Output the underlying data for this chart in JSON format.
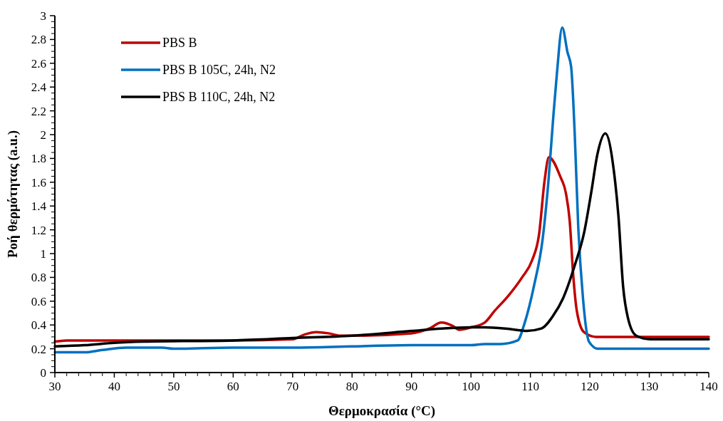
{
  "chart_data": {
    "type": "line",
    "xlabel": "Θερμοκρασία (°C)",
    "ylabel": "Ροή θερμότητας (a.u.)",
    "xlim": [
      30,
      140
    ],
    "ylim": [
      0,
      3
    ],
    "xticks": [
      30,
      40,
      50,
      60,
      70,
      80,
      90,
      100,
      110,
      120,
      130,
      140
    ],
    "yticks": [
      0,
      0.2,
      0.4,
      0.6,
      0.8,
      1,
      1.2,
      1.4,
      1.6,
      1.8,
      2,
      2.2,
      2.4,
      2.6,
      2.8,
      3
    ],
    "grid": false,
    "legend": "top left",
    "marker": "none",
    "line_style": "solid",
    "series": [
      {
        "name": "PBS B",
        "color": "#c00000",
        "x": [
          30,
          32,
          40,
          60,
          70,
          72,
          74,
          76,
          78,
          80,
          90,
          93,
          95,
          97,
          98,
          100,
          102.3,
          104,
          106.2,
          108.6,
          110.25,
          111.45,
          112.4,
          113.1,
          115,
          116,
          116.6,
          117.2,
          117.8,
          119,
          121,
          140
        ],
        "values": [
          0.26,
          0.27,
          0.27,
          0.27,
          0.28,
          0.32,
          0.34,
          0.33,
          0.31,
          0.31,
          0.33,
          0.37,
          0.42,
          0.39,
          0.36,
          0.38,
          0.42,
          0.52,
          0.64,
          0.8,
          0.94,
          1.16,
          1.62,
          1.81,
          1.65,
          1.5,
          1.28,
          0.82,
          0.52,
          0.34,
          0.3,
          0.3
        ]
      },
      {
        "name": "PBS B 105C, 24h, N2",
        "color": "#0070c0",
        "x": [
          30,
          35,
          38,
          42,
          48,
          50,
          60,
          70,
          80,
          90,
          100,
          102.3,
          105,
          107.85,
          109.05,
          110.65,
          112.05,
          113.05,
          113.85,
          114.45,
          115.35,
          116.25,
          116.85,
          117.45,
          118.05,
          118.85,
          119.85,
          121.4,
          140
        ],
        "values": [
          0.17,
          0.17,
          0.19,
          0.21,
          0.21,
          0.2,
          0.21,
          0.21,
          0.22,
          0.23,
          0.23,
          0.24,
          0.24,
          0.27,
          0.42,
          0.74,
          1.12,
          1.62,
          2.15,
          2.51,
          2.9,
          2.69,
          2.57,
          2.01,
          1.22,
          0.62,
          0.26,
          0.2,
          0.2
        ]
      },
      {
        "name": "PBS B 110C, 24h, N2",
        "color": "#000000",
        "x": [
          30,
          35,
          40,
          45,
          60,
          70,
          80,
          90,
          95,
          100,
          102.3,
          105.85,
          109.45,
          111.85,
          113.85,
          115.45,
          117.45,
          119.05,
          120.25,
          121.25,
          122.6,
          124,
          124.8,
          125.6,
          126.4,
          127.8,
          130.2,
          140
        ],
        "values": [
          0.22,
          0.23,
          0.25,
          0.26,
          0.27,
          0.29,
          0.31,
          0.35,
          0.37,
          0.38,
          0.38,
          0.37,
          0.35,
          0.37,
          0.48,
          0.62,
          0.9,
          1.18,
          1.52,
          1.83,
          2.01,
          1.71,
          1.32,
          0.72,
          0.46,
          0.31,
          0.28,
          0.28
        ]
      }
    ]
  }
}
